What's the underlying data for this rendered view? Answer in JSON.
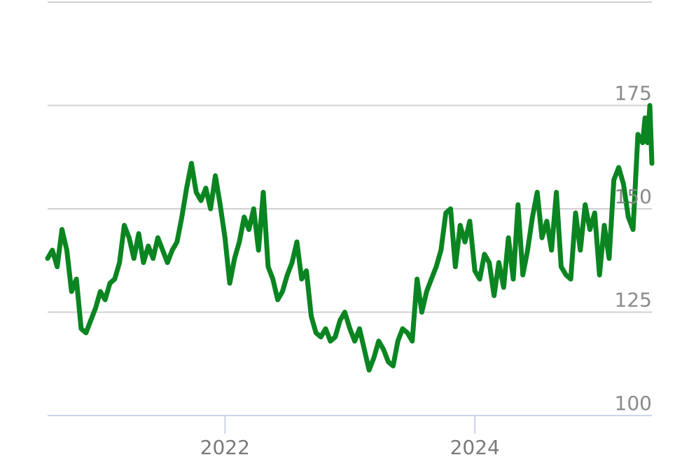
{
  "chart_data": {
    "type": "line",
    "title": "",
    "xlabel": "",
    "ylabel": "",
    "ylim": [
      100,
      200
    ],
    "xlim": [
      "2020-08-01",
      "2025-06-01"
    ],
    "y_ticks": [
      "100",
      "125",
      "150",
      "175"
    ],
    "x_ticks": [
      {
        "label": "2022",
        "date": "2022-01-01"
      },
      {
        "label": "2024",
        "date": "2024-01-01"
      }
    ],
    "grid": true,
    "colors": {
      "line": "#0a8521",
      "grid": "#d0d0d4",
      "axis": "#c9d6ea"
    },
    "series": [
      {
        "points": [
          [
            "2020-08-01",
            138
          ],
          [
            "2020-08-15",
            140
          ],
          [
            "2020-08-29",
            136
          ],
          [
            "2020-09-12",
            145
          ],
          [
            "2020-09-26",
            140
          ],
          [
            "2020-10-10",
            130
          ],
          [
            "2020-10-24",
            133
          ],
          [
            "2020-11-07",
            121
          ],
          [
            "2020-11-21",
            120
          ],
          [
            "2020-12-05",
            123
          ],
          [
            "2020-12-19",
            126
          ],
          [
            "2021-01-02",
            130
          ],
          [
            "2021-01-16",
            128
          ],
          [
            "2021-01-30",
            132
          ],
          [
            "2021-02-13",
            133
          ],
          [
            "2021-02-27",
            137
          ],
          [
            "2021-03-13",
            146
          ],
          [
            "2021-03-27",
            143
          ],
          [
            "2021-04-10",
            138
          ],
          [
            "2021-04-24",
            144
          ],
          [
            "2021-05-08",
            137
          ],
          [
            "2021-05-22",
            141
          ],
          [
            "2021-06-05",
            138
          ],
          [
            "2021-06-19",
            143
          ],
          [
            "2021-07-03",
            140
          ],
          [
            "2021-07-17",
            137
          ],
          [
            "2021-07-31",
            140
          ],
          [
            "2021-08-14",
            142
          ],
          [
            "2021-08-28",
            148
          ],
          [
            "2021-09-11",
            155
          ],
          [
            "2021-09-25",
            161
          ],
          [
            "2021-10-09",
            154
          ],
          [
            "2021-10-23",
            152
          ],
          [
            "2021-11-06",
            155
          ],
          [
            "2021-11-20",
            150
          ],
          [
            "2021-12-04",
            158
          ],
          [
            "2021-12-18",
            151
          ],
          [
            "2022-01-01",
            143
          ],
          [
            "2022-01-15",
            132
          ],
          [
            "2022-01-29",
            138
          ],
          [
            "2022-02-12",
            142
          ],
          [
            "2022-02-26",
            148
          ],
          [
            "2022-03-12",
            145
          ],
          [
            "2022-03-26",
            150
          ],
          [
            "2022-04-09",
            140
          ],
          [
            "2022-04-23",
            154
          ],
          [
            "2022-05-07",
            136
          ],
          [
            "2022-05-21",
            133
          ],
          [
            "2022-06-04",
            128
          ],
          [
            "2022-06-18",
            130
          ],
          [
            "2022-07-02",
            134
          ],
          [
            "2022-07-16",
            137
          ],
          [
            "2022-07-30",
            142
          ],
          [
            "2022-08-13",
            133
          ],
          [
            "2022-08-27",
            135
          ],
          [
            "2022-09-10",
            124
          ],
          [
            "2022-09-24",
            120
          ],
          [
            "2022-10-08",
            119
          ],
          [
            "2022-10-22",
            121
          ],
          [
            "2022-11-05",
            118
          ],
          [
            "2022-11-19",
            119
          ],
          [
            "2022-12-03",
            123
          ],
          [
            "2022-12-17",
            125
          ],
          [
            "2023-01-01",
            121
          ],
          [
            "2023-01-15",
            118
          ],
          [
            "2023-01-29",
            121
          ],
          [
            "2023-02-12",
            116
          ],
          [
            "2023-02-26",
            111
          ],
          [
            "2023-03-12",
            114
          ],
          [
            "2023-03-26",
            118
          ],
          [
            "2023-04-09",
            116
          ],
          [
            "2023-04-23",
            113
          ],
          [
            "2023-05-07",
            112
          ],
          [
            "2023-05-21",
            118
          ],
          [
            "2023-06-04",
            121
          ],
          [
            "2023-06-18",
            120
          ],
          [
            "2023-07-02",
            118
          ],
          [
            "2023-07-16",
            133
          ],
          [
            "2023-07-30",
            125
          ],
          [
            "2023-08-13",
            130
          ],
          [
            "2023-08-27",
            133
          ],
          [
            "2023-09-10",
            136
          ],
          [
            "2023-09-24",
            140
          ],
          [
            "2023-10-08",
            149
          ],
          [
            "2023-10-22",
            150
          ],
          [
            "2023-11-05",
            136
          ],
          [
            "2023-11-19",
            146
          ],
          [
            "2023-12-03",
            142
          ],
          [
            "2023-12-17",
            147
          ],
          [
            "2024-01-01",
            135
          ],
          [
            "2024-01-15",
            133
          ],
          [
            "2024-01-29",
            139
          ],
          [
            "2024-02-12",
            137
          ],
          [
            "2024-02-26",
            129
          ],
          [
            "2024-03-11",
            137
          ],
          [
            "2024-03-25",
            131
          ],
          [
            "2024-04-08",
            143
          ],
          [
            "2024-04-22",
            133
          ],
          [
            "2024-05-06",
            151
          ],
          [
            "2024-05-20",
            134
          ],
          [
            "2024-06-03",
            140
          ],
          [
            "2024-06-17",
            148
          ],
          [
            "2024-07-01",
            154
          ],
          [
            "2024-07-15",
            143
          ],
          [
            "2024-07-29",
            147
          ],
          [
            "2024-08-12",
            140
          ],
          [
            "2024-08-26",
            154
          ],
          [
            "2024-09-09",
            136
          ],
          [
            "2024-09-23",
            134
          ],
          [
            "2024-10-07",
            133
          ],
          [
            "2024-10-21",
            149
          ],
          [
            "2024-11-04",
            140
          ],
          [
            "2024-11-18",
            151
          ],
          [
            "2024-12-02",
            145
          ],
          [
            "2024-12-16",
            149
          ],
          [
            "2024-12-30",
            134
          ],
          [
            "2025-01-13",
            146
          ],
          [
            "2025-01-27",
            138
          ],
          [
            "2025-02-10",
            157
          ],
          [
            "2025-02-24",
            160
          ],
          [
            "2025-03-10",
            156
          ],
          [
            "2025-03-24",
            148
          ],
          [
            "2025-04-07",
            145
          ],
          [
            "2025-04-21",
            168
          ],
          [
            "2025-05-05",
            166
          ],
          [
            "2025-05-12",
            172
          ],
          [
            "2025-05-19",
            166
          ],
          [
            "2025-05-26",
            175
          ],
          [
            "2025-06-01",
            161
          ]
        ]
      }
    ]
  }
}
